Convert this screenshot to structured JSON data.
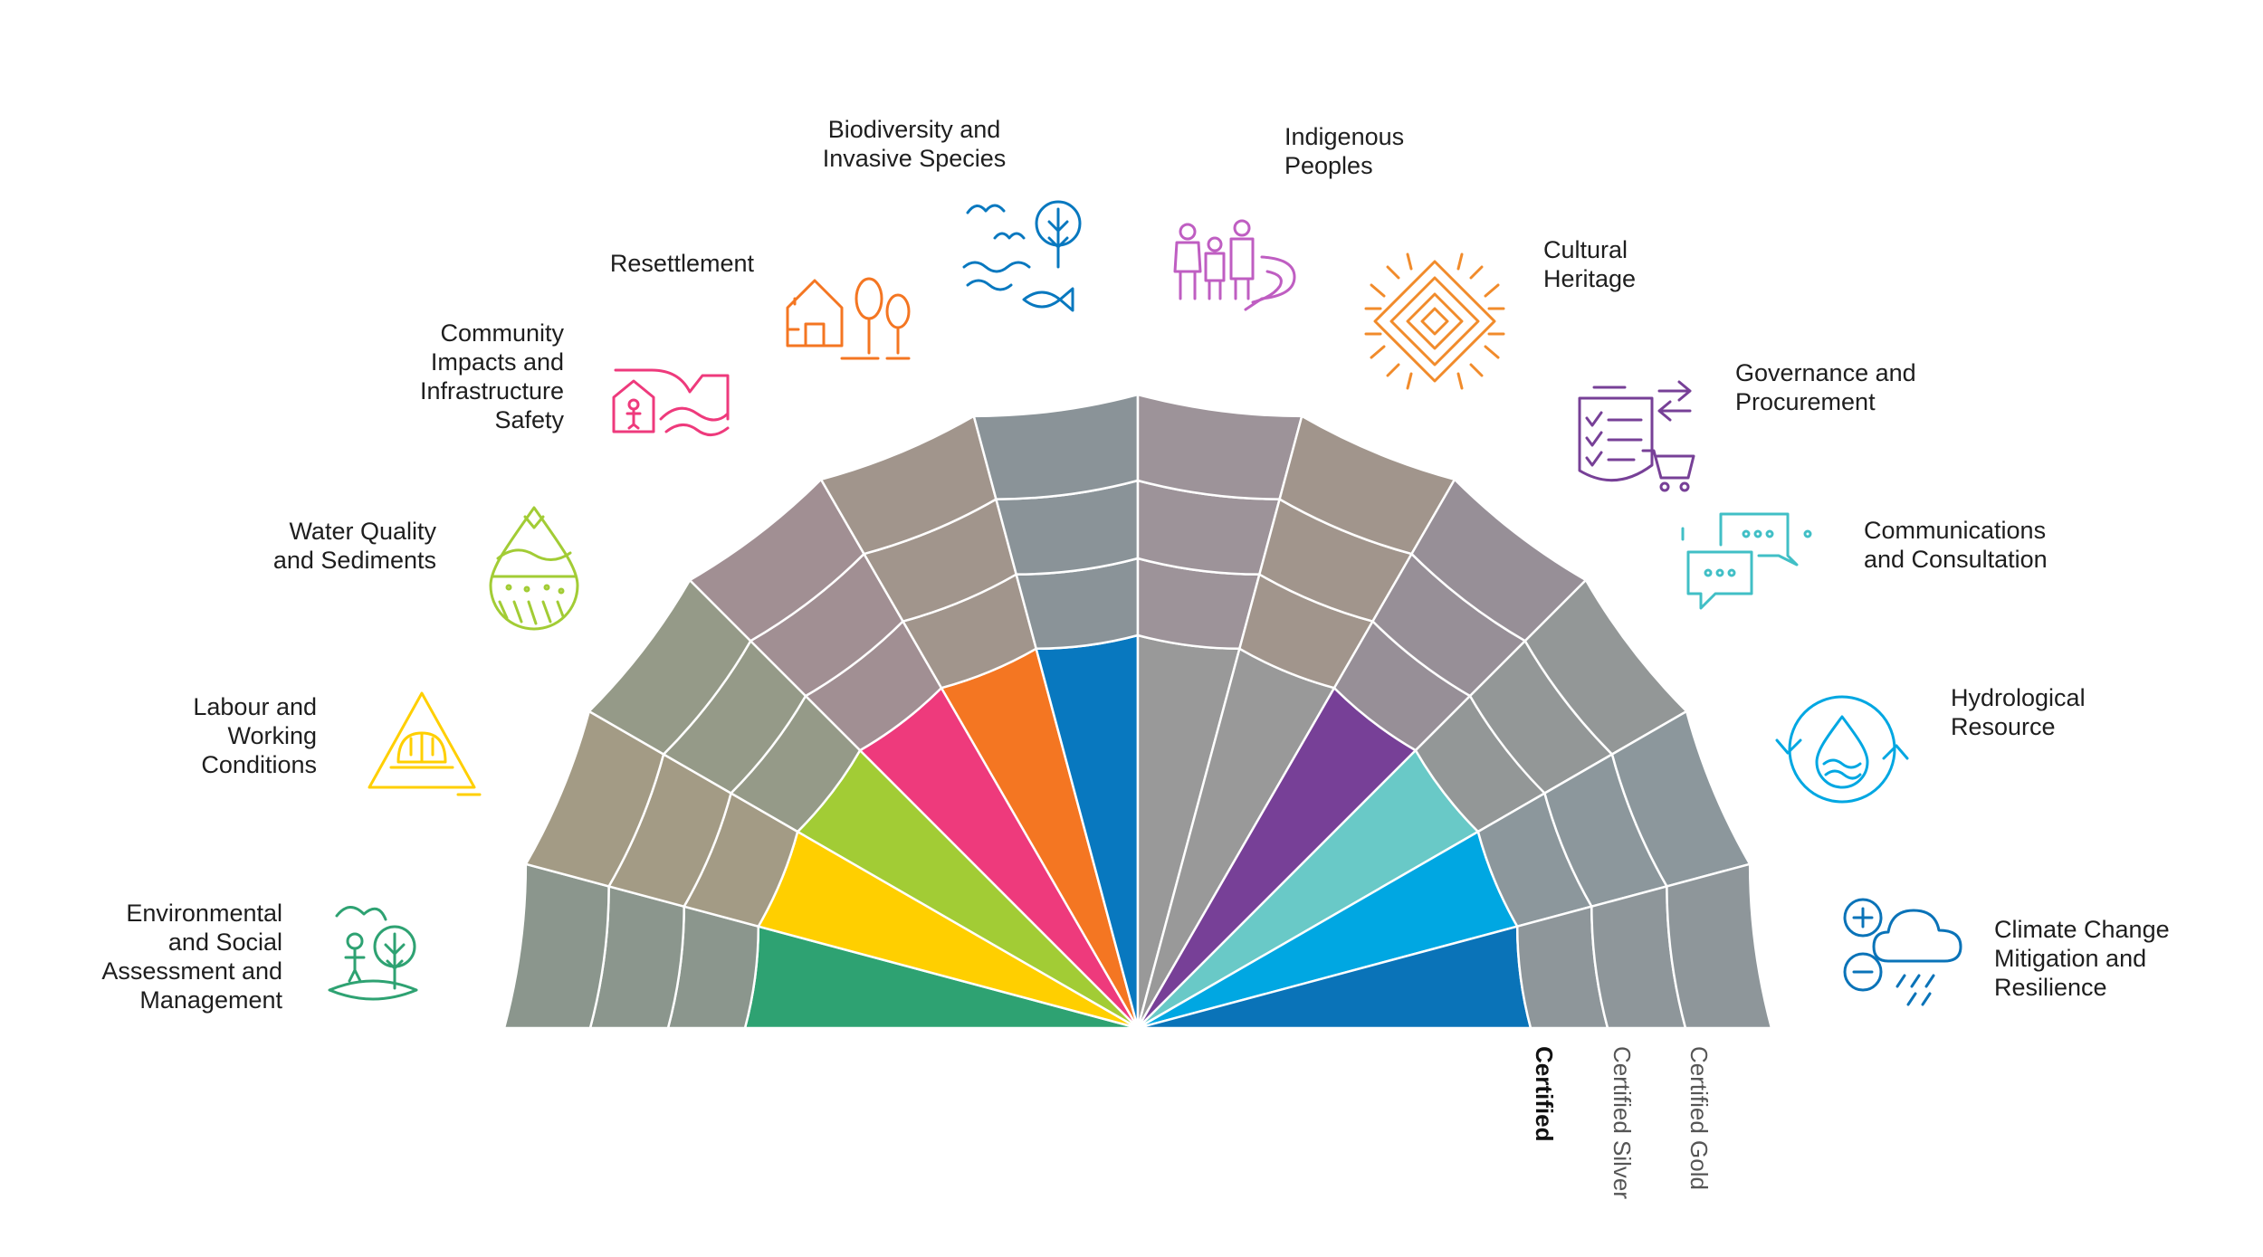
{
  "diagram": {
    "levels": [
      "Certified",
      "Certified Silver",
      "Certified Gold"
    ],
    "topics": [
      {
        "lines": [
          "Environmental",
          "and Social",
          "Assessment and",
          "Management"
        ],
        "color": "#2ea272",
        "icon": "person-and-tree-icon"
      },
      {
        "lines": [
          "Labour and",
          "Working",
          "Conditions"
        ],
        "color": "#ffcf00",
        "icon": "hard-hat-warning-icon"
      },
      {
        "lines": [
          "Water Quality",
          "and Sediments"
        ],
        "color": "#a2cc35",
        "icon": "water-drop-sediment-icon"
      },
      {
        "lines": [
          "Community",
          "Impacts and",
          "Infrastructure",
          "Safety"
        ],
        "color": "#ee3a7c",
        "icon": "dam-and-house-icon"
      },
      {
        "lines": [
          "Resettlement"
        ],
        "color": "#f47622",
        "icon": "house-and-trees-icon"
      },
      {
        "lines": [
          "Biodiversity and",
          "Invasive Species"
        ],
        "color": "#0878bf",
        "icon": "bird-tree-fish-icon"
      },
      {
        "lines": [
          "Indigenous",
          "Peoples"
        ],
        "color": "#bf5ec2",
        "icon": "family-and-river-icon"
      },
      {
        "lines": [
          "Cultural",
          "Heritage"
        ],
        "color": "#f18b2b",
        "icon": "patterned-diamond-icon"
      },
      {
        "lines": [
          "Governance and",
          "Procurement"
        ],
        "color": "#774097",
        "icon": "checklist-and-cart-icon"
      },
      {
        "lines": [
          "Communications",
          "and Consultation"
        ],
        "color": "#41bfc6",
        "icon": "speech-bubbles-icon"
      },
      {
        "lines": [
          "Hydrological",
          "Resource"
        ],
        "color": "#00a7e2",
        "icon": "water-cycle-icon"
      },
      {
        "lines": [
          "Climate Change",
          "Mitigation and",
          "Resilience"
        ],
        "color": "#0a73b8",
        "icon": "cloud-plus-minus-icon"
      }
    ],
    "wedges": [
      {
        "core_color": "#2ea272",
        "ring_colors": [
          "#8b968d",
          "#8b968d",
          "#8b968d"
        ]
      },
      {
        "core_color": "#ffcf00",
        "ring_colors": [
          "#a39b85",
          "#a39b85",
          "#a39b85"
        ]
      },
      {
        "core_color": "#a2cc35",
        "ring_colors": [
          "#959a88",
          "#959a88",
          "#959a88"
        ]
      },
      {
        "core_color": "#ee3a7c",
        "ring_colors": [
          "#a18f93",
          "#a18f93",
          "#a18f93"
        ]
      },
      {
        "core_color": "#f47622",
        "ring_colors": [
          "#a1958c",
          "#a1958c",
          "#a1958c"
        ]
      },
      {
        "core_color": "#0878bf",
        "ring_colors": [
          "#8a9398",
          "#8a9398",
          "#8a9398"
        ]
      },
      {
        "core_color": "#999999",
        "ring_colors": [
          "#9d9399",
          "#9d9399",
          "#9d9399"
        ]
      },
      {
        "core_color": "#999999",
        "ring_colors": [
          "#a1958c",
          "#a1958c",
          "#a1958c"
        ]
      },
      {
        "core_color": "#774097",
        "ring_colors": [
          "#978f97",
          "#978f97",
          "#978f97"
        ]
      },
      {
        "core_color": "#69c9c7",
        "ring_colors": [
          "#939797",
          "#939797",
          "#939797"
        ]
      },
      {
        "core_color": "#00a7e2",
        "ring_colors": [
          "#8c979c",
          "#8c979c",
          "#8c979c"
        ]
      },
      {
        "core_color": "#0a73b8",
        "ring_colors": [
          "#8e969a",
          "#8e969a",
          "#8e969a"
        ]
      }
    ]
  }
}
